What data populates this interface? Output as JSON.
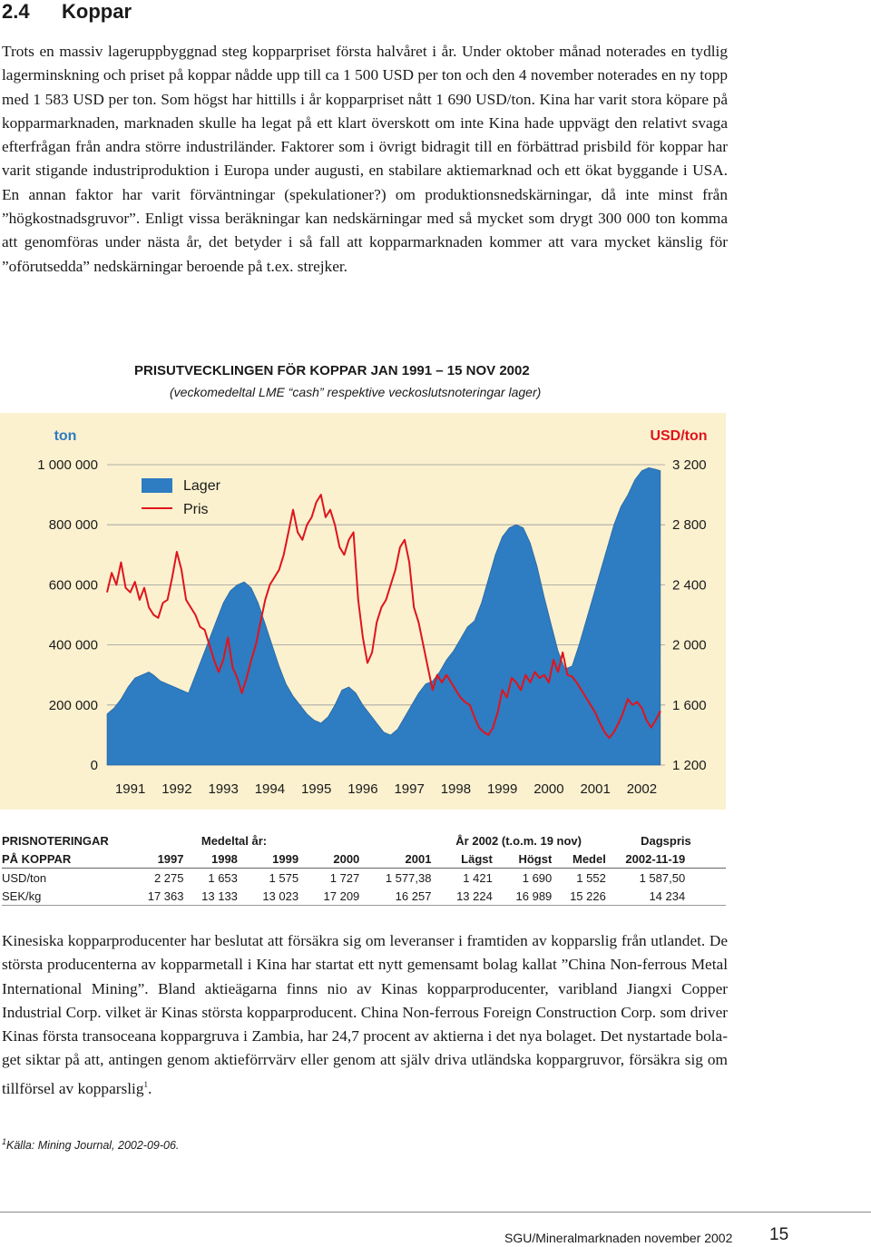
{
  "section": {
    "number": "2.4",
    "title": "Koppar"
  },
  "intro_paragraph": "Trots en massiv lageruppbyggnad steg kopparpriset första halvåret i år. Under oktober månad noterades en tydlig lagerminskning och priset på koppar nådde upp till ca 1 500 USD per ton och den 4 november noterades en ny topp med 1 583 USD per ton. Som högst har hittills i år kopparpriset nått 1 690 USD/ton. Kina har varit stora köpare på kopparmarknaden, marknaden skulle ha legat på ett klart överskott om inte Kina hade uppvägt den relativt svaga efterfrågan från andra större industriländer. Faktorer som i övrigt bidragit till en förbättrad prisbild för koppar har varit stigande industriproduktion i Europa under augusti, en stabilare aktiemarknad och ett ökat byggande i USA. En annan faktor har varit förväntningar (spekulationer?) om produktionsnedskärningar, då inte minst från ”högkostnadsgruvor”. Enligt vissa beräkningar kan nedskärningar med så mycket som drygt 300 000 ton komma att genomföras under nästa år, det betyder i så fall att kopparmarknaden kommer att vara mycket känslig för ”oförutsedda” nedskärningar beroende på t.ex. strejker.",
  "chart_data": {
    "type": "area",
    "title": "PRISUTVECKLINGEN FÖR KOPPAR JAN 1991 – 15 NOV 2002",
    "subtitle": "(veckomedeltal LME “cash” respektive veckoslutsnoteringar lager)",
    "y_left_label": "ton",
    "y_right_label": "USD/ton",
    "y_left_range": [
      0,
      1000000
    ],
    "y_right_range": [
      1200,
      3200
    ],
    "y_left_ticks": [
      "1 000 000",
      "800 000",
      "600 000",
      "400 000",
      "200 000",
      "0"
    ],
    "y_right_ticks": [
      "3 200",
      "2 800",
      "2 400",
      "2 000",
      "1 600",
      "1 200"
    ],
    "x_ticks": [
      "1991",
      "1992",
      "1993",
      "1994",
      "1995",
      "1996",
      "1997",
      "1998",
      "1999",
      "2000",
      "2001",
      "2002"
    ],
    "x_range": [
      1991.0,
      2003.0
    ],
    "grid": "horizontal",
    "legend_position": "top-left",
    "series": [
      {
        "name": "Lager",
        "axis": "left",
        "color": "#2e7cc1",
        "x": [
          1991.0,
          1991.15,
          1991.3,
          1991.45,
          1991.6,
          1991.75,
          1991.9,
          1992.0,
          1992.15,
          1992.3,
          1992.45,
          1992.6,
          1992.75,
          1992.9,
          1993.05,
          1993.2,
          1993.35,
          1993.5,
          1993.65,
          1993.8,
          1993.95,
          1994.1,
          1994.25,
          1994.4,
          1994.55,
          1994.7,
          1994.85,
          1995.0,
          1995.15,
          1995.3,
          1995.45,
          1995.6,
          1995.75,
          1995.9,
          1996.05,
          1996.2,
          1996.35,
          1996.5,
          1996.65,
          1996.8,
          1996.95,
          1997.1,
          1997.25,
          1997.4,
          1997.55,
          1997.7,
          1997.85,
          1998.0,
          1998.15,
          1998.3,
          1998.45,
          1998.6,
          1998.75,
          1998.9,
          1999.05,
          1999.2,
          1999.35,
          1999.5,
          1999.65,
          1999.8,
          1999.95,
          2000.1,
          2000.25,
          2000.4,
          2000.55,
          2000.7,
          2000.85,
          2001.0,
          2001.15,
          2001.3,
          2001.45,
          2001.6,
          2001.75,
          2001.9,
          2002.05,
          2002.2,
          2002.35,
          2002.5,
          2002.65,
          2002.8,
          2002.9
        ],
        "values": [
          170000,
          190000,
          220000,
          260000,
          290000,
          300000,
          310000,
          300000,
          280000,
          270000,
          260000,
          250000,
          240000,
          300000,
          360000,
          420000,
          480000,
          540000,
          580000,
          600000,
          610000,
          590000,
          540000,
          470000,
          400000,
          330000,
          270000,
          230000,
          200000,
          170000,
          150000,
          140000,
          160000,
          200000,
          250000,
          260000,
          240000,
          200000,
          170000,
          140000,
          110000,
          100000,
          120000,
          160000,
          200000,
          240000,
          270000,
          280000,
          310000,
          350000,
          380000,
          420000,
          460000,
          480000,
          540000,
          620000,
          700000,
          760000,
          790000,
          800000,
          790000,
          740000,
          660000,
          560000,
          470000,
          380000,
          320000,
          330000,
          400000,
          480000,
          560000,
          640000,
          720000,
          800000,
          860000,
          900000,
          950000,
          980000,
          990000,
          985000,
          980000
        ]
      },
      {
        "name": "Pris",
        "axis": "right",
        "color": "#e0141c",
        "x": [
          1991.0,
          1991.1,
          1991.2,
          1991.3,
          1991.4,
          1991.5,
          1991.6,
          1991.7,
          1991.8,
          1991.9,
          1992.0,
          1992.1,
          1992.2,
          1992.3,
          1992.4,
          1992.5,
          1992.6,
          1992.7,
          1992.8,
          1992.9,
          1993.0,
          1993.1,
          1993.2,
          1993.3,
          1993.4,
          1993.5,
          1993.6,
          1993.7,
          1993.8,
          1993.9,
          1994.0,
          1994.1,
          1994.2,
          1994.3,
          1994.4,
          1994.5,
          1994.6,
          1994.7,
          1994.8,
          1994.9,
          1995.0,
          1995.1,
          1995.2,
          1995.3,
          1995.4,
          1995.5,
          1995.6,
          1995.7,
          1995.8,
          1995.9,
          1996.0,
          1996.1,
          1996.2,
          1996.3,
          1996.4,
          1996.5,
          1996.6,
          1996.7,
          1996.8,
          1996.9,
          1997.0,
          1997.1,
          1997.2,
          1997.3,
          1997.4,
          1997.5,
          1997.6,
          1997.7,
          1997.8,
          1997.9,
          1998.0,
          1998.1,
          1998.2,
          1998.3,
          1998.4,
          1998.5,
          1998.6,
          1998.7,
          1998.8,
          1998.9,
          1999.0,
          1999.1,
          1999.2,
          1999.3,
          1999.4,
          1999.5,
          1999.6,
          1999.7,
          1999.8,
          1999.9,
          2000.0,
          2000.1,
          2000.2,
          2000.3,
          2000.4,
          2000.5,
          2000.6,
          2000.7,
          2000.8,
          2000.9,
          2001.0,
          2001.1,
          2001.2,
          2001.3,
          2001.4,
          2001.5,
          2001.6,
          2001.7,
          2001.8,
          2001.9,
          2002.0,
          2002.1,
          2002.2,
          2002.3,
          2002.4,
          2002.5,
          2002.6,
          2002.7,
          2002.8,
          2002.9
        ],
        "values": [
          2350,
          2480,
          2400,
          2550,
          2380,
          2350,
          2420,
          2300,
          2380,
          2250,
          2200,
          2180,
          2280,
          2300,
          2450,
          2620,
          2500,
          2300,
          2250,
          2200,
          2120,
          2100,
          2000,
          1900,
          1820,
          1900,
          2050,
          1850,
          1780,
          1680,
          1780,
          1900,
          2000,
          2150,
          2300,
          2400,
          2450,
          2500,
          2600,
          2750,
          2900,
          2750,
          2700,
          2800,
          2850,
          2950,
          3000,
          2850,
          2900,
          2800,
          2650,
          2600,
          2700,
          2750,
          2300,
          2050,
          1880,
          1950,
          2150,
          2250,
          2300,
          2400,
          2500,
          2650,
          2700,
          2550,
          2250,
          2150,
          2000,
          1850,
          1700,
          1800,
          1750,
          1800,
          1750,
          1700,
          1650,
          1620,
          1600,
          1520,
          1450,
          1420,
          1400,
          1450,
          1550,
          1700,
          1650,
          1780,
          1750,
          1700,
          1800,
          1750,
          1820,
          1780,
          1800,
          1750,
          1900,
          1820,
          1950,
          1800,
          1790,
          1750,
          1700,
          1650,
          1600,
          1550,
          1480,
          1420,
          1380,
          1420,
          1480,
          1550,
          1640,
          1600,
          1620,
          1580,
          1500,
          1450,
          1500,
          1560
        ]
      }
    ]
  },
  "price_table": {
    "header1": [
      "PRISNOTERINGAR",
      "Medeltal år:",
      "År 2002 (t.o.m. 19 nov)",
      "Dagspris"
    ],
    "header2": [
      "PÅ KOPPAR",
      "1997",
      "1998",
      "1999",
      "2000",
      "2001",
      "Lägst",
      "Högst",
      "Medel",
      "2002-11-19"
    ],
    "rows": [
      [
        "USD/ton",
        "2 275",
        "1 653",
        "1 575",
        "1 727",
        "1 577,38",
        "1 421",
        "1 690",
        "1 552",
        "1 587,50"
      ],
      [
        "SEK/kg",
        "17 363",
        "13 133",
        "13 023",
        "17 209",
        "16 257",
        "13 224",
        "16 989",
        "15 226",
        "14 234"
      ]
    ]
  },
  "second_paragraph": "Kinesiska kopparproducenter har beslutat att försäkra sig om leveranser i framtiden av kopparslig från utlandet. De största producenterna av koppar­metall i Kina har startat ett nytt gemensamt bolag kallat ”China Non-ferrous Metal International Mining”. Bland aktieägarna finns nio av Kinas koppar­producenter, varibland Jiangxi Copper Industrial Corp. vilket är Kinas största kop­parproducent. China Non-ferrous Foreign Construction Corp. som driver Kinas första trans­oceana koppargruva i Zambia, har 24,7 procent av aktierna i det nya bolaget. Det nystartade bola­get siktar på att, antingen genom aktieförrvärv eller genom att själv driva utländska koppargruvor, försäkra sig om tillförsel av kopparslig",
  "second_paragraph_sup": "1",
  "second_paragraph_end": ".",
  "footnote": {
    "marker": "1",
    "text": "Källa: Mining Journal, 2002-09-06."
  },
  "footer": {
    "publication": "SGU/Mineralmarknaden november 2002",
    "page": "15"
  }
}
